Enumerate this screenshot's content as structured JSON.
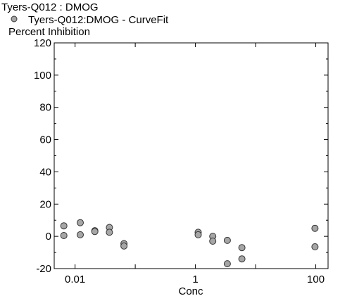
{
  "chart_data": {
    "type": "scatter",
    "title": "Tyers-Q012  :  DMOG",
    "legend": [
      {
        "name": "Tyers-Q012:DMOG - CurveFit",
        "color": "#a6a6a6",
        "marker": "circle"
      }
    ],
    "ylabel": "Percent Inhibition",
    "xlabel": "Conc",
    "x_scale": "log",
    "xlim": [
      0.0045,
      160
    ],
    "ylim": [
      -20,
      120
    ],
    "x_ticks": [
      {
        "value": 0.01,
        "label": "0.01"
      },
      {
        "value": 1,
        "label": "1"
      },
      {
        "value": 100,
        "label": "100"
      }
    ],
    "y_ticks": [
      {
        "value": -20,
        "label": "-20"
      },
      {
        "value": 0,
        "label": "0"
      },
      {
        "value": 20,
        "label": "20"
      },
      {
        "value": 40,
        "label": "40"
      },
      {
        "value": 60,
        "label": "60"
      },
      {
        "value": 80,
        "label": "80"
      },
      {
        "value": 100,
        "label": "100"
      },
      {
        "value": 120,
        "label": "120"
      }
    ],
    "grid": false,
    "legend_position": "top-left",
    "series": [
      {
        "name": "Tyers-Q012:DMOG - CurveFit",
        "color": "#a6a6a6",
        "points": [
          {
            "x": 0.0065,
            "y": 6.5
          },
          {
            "x": 0.0065,
            "y": 0.5
          },
          {
            "x": 0.0122,
            "y": 8.5
          },
          {
            "x": 0.0122,
            "y": 1.0
          },
          {
            "x": 0.0213,
            "y": 3.5
          },
          {
            "x": 0.0213,
            "y": 3.0
          },
          {
            "x": 0.0372,
            "y": 5.5
          },
          {
            "x": 0.0372,
            "y": 2.5
          },
          {
            "x": 0.065,
            "y": -4.5
          },
          {
            "x": 0.065,
            "y": -6.0
          },
          {
            "x": 1.11,
            "y": 2.5
          },
          {
            "x": 1.11,
            "y": 1.0
          },
          {
            "x": 1.94,
            "y": 0.0
          },
          {
            "x": 1.94,
            "y": -3.0
          },
          {
            "x": 3.39,
            "y": -2.5
          },
          {
            "x": 3.39,
            "y": -17.0
          },
          {
            "x": 5.91,
            "y": -7.0
          },
          {
            "x": 5.91,
            "y": -14.0
          },
          {
            "x": 97,
            "y": 5.0
          },
          {
            "x": 97,
            "y": -6.5
          }
        ]
      }
    ]
  }
}
